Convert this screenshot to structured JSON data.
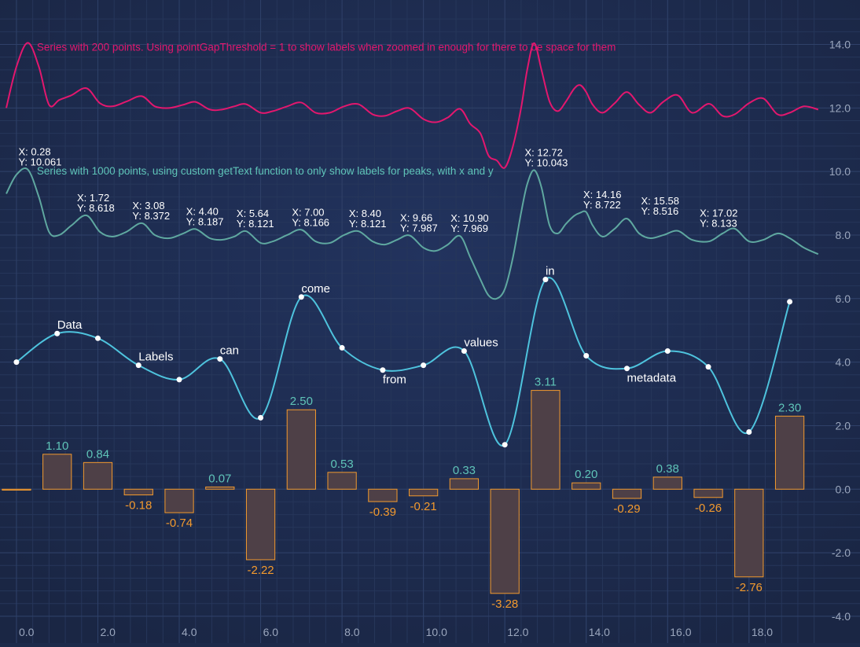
{
  "chart_data": {
    "type": "line",
    "xlim": [
      -0.25,
      19.8
    ],
    "ylim": [
      -4.2,
      15.2
    ],
    "x_ticks": [
      0,
      2,
      4,
      6,
      8,
      10,
      12,
      14,
      16,
      18
    ],
    "x_tick_labels": [
      "0.0",
      "2.0",
      "4.0",
      "6.0",
      "8.0",
      "10.0",
      "12.0",
      "14.0",
      "16.0",
      "18.0"
    ],
    "y_ticks": [
      -4,
      -2,
      0,
      2,
      4,
      6,
      8,
      10,
      12,
      14
    ],
    "y_tick_labels": [
      "-4.0",
      "-2.0",
      "0.0",
      "2.0",
      "4.0",
      "6.0",
      "8.0",
      "10.0",
      "12.0",
      "14.0"
    ],
    "grid": true,
    "y_axis_position": "right",
    "annotations": [
      {
        "text": "Series with 200 points. Using pointGapThreshold = 1 to show labels when zoomed in enough for there to be space for them",
        "x": 0.5,
        "y": 13.8,
        "color": "#e3176e"
      },
      {
        "text": "Series with 1000 points, using custom getText function to only show labels for peaks, with x and y",
        "x": 0.5,
        "y": 9.9,
        "color": "#5fc4b8"
      }
    ],
    "series": [
      {
        "kind": "line",
        "color": "#e3176e",
        "x": [
          -0.25,
          0.0,
          0.28,
          0.55,
          0.8,
          1.05,
          1.35,
          1.72,
          2.05,
          2.35,
          2.7,
          3.08,
          3.4,
          3.75,
          4.1,
          4.4,
          4.75,
          5.05,
          5.35,
          5.64,
          6.0,
          6.3,
          6.65,
          7.0,
          7.35,
          7.7,
          8.05,
          8.4,
          8.75,
          9.05,
          9.35,
          9.66,
          10.0,
          10.3,
          10.6,
          10.9,
          11.15,
          11.4,
          11.6,
          11.8,
          12.0,
          12.2,
          12.4,
          12.55,
          12.72,
          12.9,
          13.1,
          13.3,
          13.5,
          13.7,
          13.85,
          14.0,
          14.16,
          14.4,
          14.7,
          15.0,
          15.3,
          15.58,
          15.9,
          16.25,
          16.6,
          17.02,
          17.35,
          17.65,
          18.0,
          18.35,
          18.7,
          19.0,
          19.35,
          19.7
        ],
        "y": [
          12.0,
          13.3,
          14.05,
          13.3,
          12.1,
          12.25,
          12.4,
          12.62,
          12.15,
          12.05,
          12.2,
          12.37,
          12.05,
          12.0,
          12.1,
          12.19,
          11.95,
          11.95,
          12.05,
          12.12,
          11.85,
          11.9,
          12.05,
          12.17,
          11.85,
          11.85,
          12.05,
          12.12,
          11.8,
          11.75,
          11.9,
          11.99,
          11.65,
          11.55,
          11.7,
          11.97,
          11.5,
          11.2,
          10.5,
          10.35,
          10.12,
          10.8,
          12.0,
          13.2,
          14.04,
          13.2,
          12.2,
          11.9,
          12.2,
          12.6,
          12.72,
          12.5,
          12.1,
          11.85,
          12.15,
          12.5,
          12.1,
          11.85,
          12.2,
          12.4,
          11.85,
          12.13,
          11.75,
          11.8,
          12.15,
          12.3,
          11.8,
          11.85,
          12.05,
          11.95
        ]
      },
      {
        "kind": "line",
        "color": "#5fa8a0",
        "peak_label_color": "#ffffff",
        "x": [
          -0.25,
          0.0,
          0.28,
          0.55,
          0.8,
          1.05,
          1.35,
          1.72,
          2.05,
          2.35,
          2.7,
          3.08,
          3.4,
          3.75,
          4.1,
          4.4,
          4.75,
          5.05,
          5.35,
          5.64,
          6.0,
          6.3,
          6.65,
          7.0,
          7.35,
          7.7,
          8.05,
          8.4,
          8.75,
          9.05,
          9.35,
          9.66,
          10.0,
          10.3,
          10.6,
          10.9,
          11.15,
          11.4,
          11.6,
          11.8,
          12.0,
          12.2,
          12.4,
          12.55,
          12.72,
          12.9,
          13.1,
          13.3,
          13.5,
          13.7,
          13.85,
          14.0,
          14.16,
          14.4,
          14.7,
          15.0,
          15.3,
          15.58,
          15.9,
          16.25,
          16.6,
          17.02,
          17.35,
          17.65,
          18.0,
          18.35,
          18.7,
          19.0,
          19.35,
          19.7
        ],
        "y": [
          9.3,
          9.9,
          10.061,
          9.2,
          8.1,
          8.0,
          8.3,
          8.618,
          8.1,
          7.95,
          8.1,
          8.372,
          8.0,
          7.9,
          8.05,
          8.187,
          7.9,
          7.85,
          7.95,
          8.121,
          7.75,
          7.8,
          8.0,
          8.166,
          7.8,
          7.75,
          8.0,
          8.121,
          7.8,
          7.7,
          7.85,
          7.987,
          7.6,
          7.5,
          7.7,
          7.969,
          7.3,
          6.6,
          6.1,
          6.0,
          6.3,
          7.3,
          8.7,
          9.6,
          10.043,
          9.5,
          8.3,
          8.05,
          8.35,
          8.6,
          8.7,
          8.722,
          8.3,
          7.95,
          8.2,
          8.516,
          8.05,
          7.9,
          8.0,
          8.133,
          7.85,
          7.8,
          8.05,
          8.2,
          7.8,
          7.85,
          8.05,
          7.9,
          7.6,
          7.4
        ],
        "peak_labels": [
          {
            "x": 0.28,
            "y": 10.061,
            "xtext": "X: 0.28",
            "ytext": "Y: 10.061"
          },
          {
            "x": 1.72,
            "y": 8.618,
            "xtext": "X: 1.72",
            "ytext": "Y: 8.618"
          },
          {
            "x": 3.08,
            "y": 8.372,
            "xtext": "X: 3.08",
            "ytext": "Y: 8.372"
          },
          {
            "x": 4.4,
            "y": 8.187,
            "xtext": "X: 4.40",
            "ytext": "Y: 8.187"
          },
          {
            "x": 5.64,
            "y": 8.121,
            "xtext": "X: 5.64",
            "ytext": "Y: 8.121"
          },
          {
            "x": 7.0,
            "y": 8.166,
            "xtext": "X: 7.00",
            "ytext": "Y: 8.166"
          },
          {
            "x": 8.4,
            "y": 8.121,
            "xtext": "X: 8.40",
            "ytext": "Y: 8.121"
          },
          {
            "x": 9.66,
            "y": 7.987,
            "xtext": "X: 9.66",
            "ytext": "Y: 7.987"
          },
          {
            "x": 10.9,
            "y": 7.969,
            "xtext": "X: 10.90",
            "ytext": "Y: 7.969"
          },
          {
            "x": 12.72,
            "y": 10.043,
            "xtext": "X: 12.72",
            "ytext": "Y: 10.043"
          },
          {
            "x": 14.16,
            "y": 8.722,
            "xtext": "X: 14.16",
            "ytext": "Y: 8.722"
          },
          {
            "x": 15.58,
            "y": 8.516,
            "xtext": "X: 15.58",
            "ytext": "Y: 8.516"
          },
          {
            "x": 17.02,
            "y": 8.133,
            "xtext": "X: 17.02",
            "ytext": "Y: 8.133"
          }
        ]
      },
      {
        "kind": "spline-markers",
        "color": "#4ec3dd",
        "marker_color": "#ffffff",
        "label_color": "#ffffff",
        "x": [
          0,
          1,
          2,
          3,
          4,
          5,
          6,
          7,
          8,
          9,
          10,
          11,
          12,
          13,
          14,
          15,
          16,
          17,
          18,
          19
        ],
        "y": [
          4.0,
          4.9,
          4.75,
          3.9,
          3.45,
          4.1,
          2.25,
          6.05,
          4.45,
          3.75,
          3.9,
          4.35,
          1.4,
          6.6,
          4.2,
          3.8,
          4.35,
          3.85,
          1.8,
          5.9
        ],
        "labels": [
          {
            "i": 1,
            "text": "Data",
            "pos": "above"
          },
          {
            "i": 3,
            "text": "Labels",
            "pos": "above"
          },
          {
            "i": 5,
            "text": "can",
            "pos": "above"
          },
          {
            "i": 7,
            "text": "come",
            "pos": "above"
          },
          {
            "i": 9,
            "text": "from",
            "pos": "below"
          },
          {
            "i": 11,
            "text": "values",
            "pos": "above"
          },
          {
            "i": 13,
            "text": "in",
            "pos": "above"
          },
          {
            "i": 15,
            "text": "metadata",
            "pos": "below"
          }
        ]
      },
      {
        "kind": "bar",
        "stroke": "#f39a2e",
        "fill": "#4e4047",
        "positive_label_color": "#5fc4b8",
        "negative_label_color": "#f39a2e",
        "x": [
          0,
          1,
          2,
          3,
          4,
          5,
          6,
          7,
          8,
          9,
          10,
          11,
          12,
          13,
          14,
          15,
          16,
          17,
          18,
          19
        ],
        "values": [
          0.0,
          1.1,
          0.84,
          -0.18,
          -0.74,
          0.07,
          -2.22,
          2.5,
          0.53,
          -0.39,
          -0.21,
          0.33,
          -3.28,
          3.11,
          0.2,
          -0.29,
          0.38,
          -0.26,
          -2.76,
          2.3
        ],
        "value_labels": [
          "",
          "1.10",
          "0.84",
          "-0.18",
          "-0.74",
          "0.07",
          "-2.22",
          "2.50",
          "0.53",
          "-0.39",
          "-0.21",
          "0.33",
          "-3.28",
          "3.11",
          "0.20",
          "-0.29",
          "0.38",
          "-0.26",
          "-2.76",
          "2.30"
        ]
      }
    ]
  }
}
